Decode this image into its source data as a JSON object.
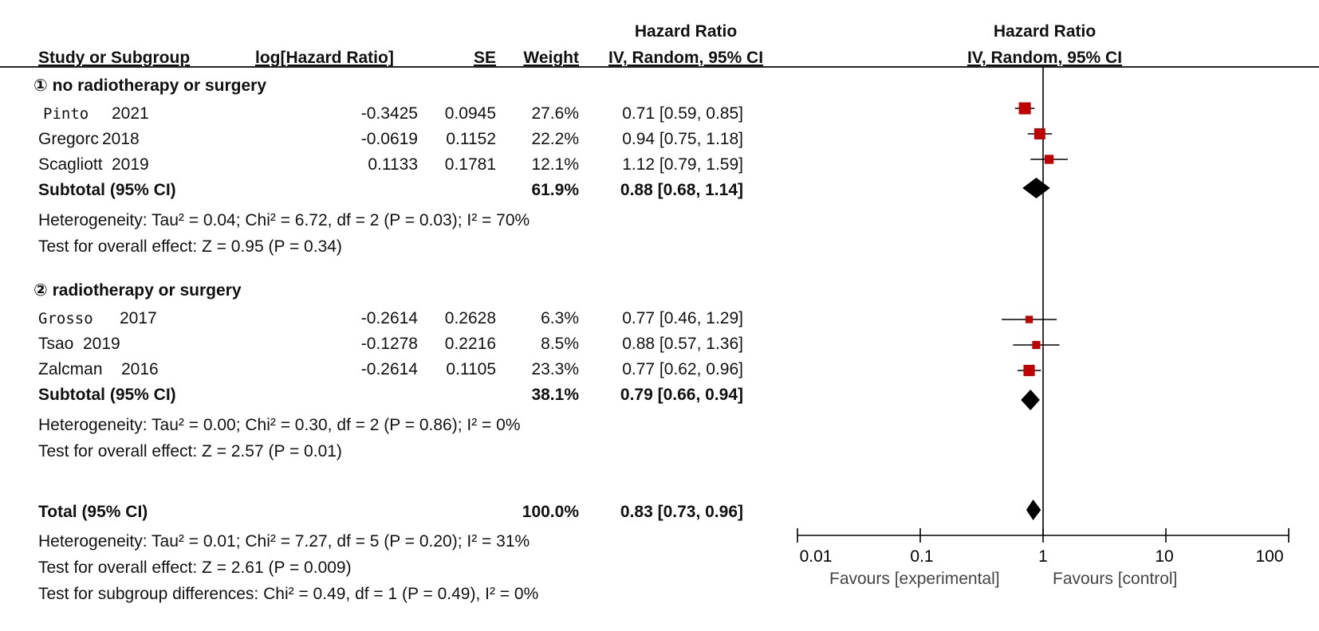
{
  "header": {
    "col_study": "Study or Subgroup",
    "col_log_hr": "log[Hazard Ratio]",
    "col_se": "SE",
    "col_weight": "Weight",
    "col_hr_title": "Hazard Ratio",
    "col_hr_method": "IV, Random, 95% CI",
    "plot_title": "Hazard Ratio",
    "plot_method": "IV, Random, 95% CI"
  },
  "groups": [
    {
      "title": "① no radiotherapy or surgery",
      "studies": [
        {
          "name": "Pinto",
          "year": "2021",
          "log_hr": "-0.3425",
          "se": "0.0945",
          "weight": "27.6%",
          "ci": "0.71 [0.59, 0.85]"
        },
        {
          "name": "Gregorc",
          "year": "2018",
          "log_hr": "-0.0619",
          "se": "0.1152",
          "weight": "22.2%",
          "ci": "0.94 [0.75, 1.18]"
        },
        {
          "name": "Scagliott",
          "year": "2019",
          "log_hr": "0.1133",
          "se": "0.1781",
          "weight": "12.1%",
          "ci": "1.12 [0.79, 1.59]"
        }
      ],
      "subtotal": {
        "label": "Subtotal (95% CI)",
        "weight": "61.9%",
        "ci": "0.88 [0.68, 1.14]"
      },
      "heterogeneity": "Heterogeneity: Tau² = 0.04; Chi² = 6.72, df = 2 (P = 0.03); I² = 70%",
      "overall": "Test for overall effect: Z = 0.95 (P = 0.34)"
    },
    {
      "title": "② radiotherapy or surgery",
      "studies": [
        {
          "name": "Grosso",
          "year": "2017",
          "log_hr": "-0.2614",
          "se": "0.2628",
          "weight": "6.3%",
          "ci": "0.77 [0.46, 1.29]"
        },
        {
          "name": "Tsao",
          "year": "2019",
          "log_hr": "-0.1278",
          "se": "0.2216",
          "weight": "8.5%",
          "ci": "0.88 [0.57, 1.36]"
        },
        {
          "name": "Zalcman",
          "year": "2016",
          "log_hr": "-0.2614",
          "se": "0.1105",
          "weight": "23.3%",
          "ci": "0.77 [0.62, 0.96]"
        }
      ],
      "subtotal": {
        "label": "Subtotal (95% CI)",
        "weight": "38.1%",
        "ci": "0.79 [0.66, 0.94]"
      },
      "heterogeneity": "Heterogeneity: Tau² = 0.00; Chi² = 0.30, df = 2 (P = 0.86); I² = 0%",
      "overall": "Test for overall effect: Z = 2.57 (P = 0.01)"
    }
  ],
  "total": {
    "label": "Total (95% CI)",
    "weight": "100.0%",
    "ci": "0.83 [0.73, 0.96]",
    "heterogeneity": "Heterogeneity: Tau² = 0.01; Chi² = 7.27, df = 5 (P = 0.20); I² = 31%",
    "overall": "Test for overall effect: Z = 2.61 (P = 0.009)",
    "subgroup": "Test for subgroup differences: Chi² = 0.49, df = 1 (P = 0.49), I² = 0%"
  },
  "axis": {
    "ticks": [
      "0.01",
      "0.1",
      "1",
      "10",
      "100"
    ],
    "favours_left": "Favours [experimental]",
    "favours_right": "Favours [control]"
  },
  "colors": {
    "study_marker": "#c00000",
    "diamond": "#000000",
    "line": "#000000"
  },
  "chart_data": {
    "type": "forest",
    "scale": "log",
    "xlim": [
      0.01,
      100
    ],
    "null_line": 1,
    "studies": [
      {
        "name": "Pinto 2021",
        "hr": 0.71,
        "lo": 0.59,
        "hi": 0.85,
        "weight": 27.6
      },
      {
        "name": "Gregorc 2018",
        "hr": 0.94,
        "lo": 0.75,
        "hi": 1.18,
        "weight": 22.2
      },
      {
        "name": "Scagliott 2019",
        "hr": 1.12,
        "lo": 0.79,
        "hi": 1.59,
        "weight": 12.1
      },
      {
        "name": "Grosso 2017",
        "hr": 0.77,
        "lo": 0.46,
        "hi": 1.29,
        "weight": 6.3
      },
      {
        "name": "Tsao 2019",
        "hr": 0.88,
        "lo": 0.57,
        "hi": 1.36,
        "weight": 8.5
      },
      {
        "name": "Zalcman 2016",
        "hr": 0.77,
        "lo": 0.62,
        "hi": 0.96,
        "weight": 23.3
      }
    ],
    "summaries": [
      {
        "name": "Subtotal 1",
        "hr": 0.88,
        "lo": 0.68,
        "hi": 1.14
      },
      {
        "name": "Subtotal 2",
        "hr": 0.79,
        "lo": 0.66,
        "hi": 0.94
      },
      {
        "name": "Total",
        "hr": 0.83,
        "lo": 0.73,
        "hi": 0.96
      }
    ]
  }
}
